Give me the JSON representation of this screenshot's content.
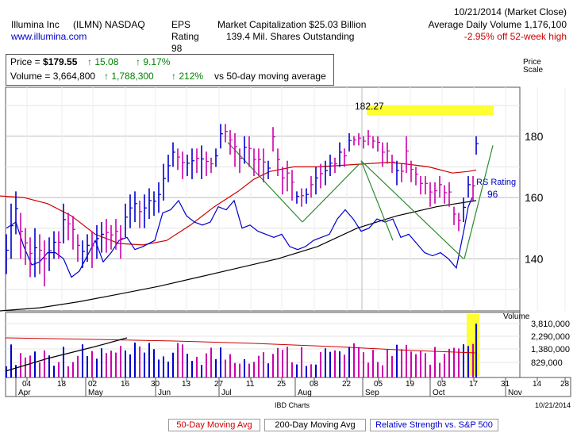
{
  "header": {
    "company": "Illumina Inc",
    "ticker": "(ILMN) NASDAQ",
    "website": "www.illumina.com",
    "eps_label": "EPS",
    "eps_rating_label": "Rating",
    "eps_rating_value": "98",
    "market_cap": "Market Capitalization $25.03 Billion",
    "shares_outstanding": "139.4 Mil. Shares Outstanding",
    "date": "10/21/2014 (Market Close)",
    "avg_volume": "Average Daily Volume 1,176,100",
    "off_high": "-2.95% off 52-week high"
  },
  "stats": {
    "price_label": "Price =",
    "price_value": "$179.55",
    "price_change": "15.08",
    "price_change_pct": "9.17%",
    "volume_label": "Volume =",
    "volume_value": "3,664,800",
    "volume_change": "1,788,300",
    "volume_change_pct": "212%",
    "volume_note": "vs 50-day moving average"
  },
  "chart_data": {
    "type": "bar",
    "price_axis": {
      "title": "Price Scale",
      "ticks": [
        180,
        160,
        140
      ],
      "ylim": [
        123,
        196
      ]
    },
    "volume_axis": {
      "title": "Volume",
      "ticks": [
        "3,810,000",
        "2,290,000",
        "1,380,000",
        "829,000"
      ]
    },
    "annotation_high": "182.27",
    "rs_rating_label": "RS Rating",
    "rs_rating_value": "96",
    "x_ticks": [
      "04",
      "18",
      "02",
      "16",
      "30",
      "13",
      "27",
      "11",
      "25",
      "08",
      "22",
      "05",
      "19",
      "03",
      "17",
      "31",
      "14",
      "28"
    ],
    "months": [
      "Apr",
      "May",
      "Jun",
      "Jul",
      "Aug",
      "Sep",
      "Oct",
      "Nov"
    ],
    "footer_source": "IBD Charts",
    "footer_date": "10/21/2014",
    "series": [
      {
        "name": "50-Day Moving Avg",
        "color": "#cc0000",
        "values": [
          [
            0,
            160.5
          ],
          [
            30,
            160
          ],
          [
            60,
            158
          ],
          [
            90,
            154
          ],
          [
            120,
            148
          ],
          [
            150,
            145
          ],
          [
            180,
            144.5
          ],
          [
            210,
            146
          ],
          [
            240,
            151
          ],
          [
            270,
            157
          ],
          [
            300,
            162
          ],
          [
            320,
            166
          ],
          [
            340,
            168.5
          ],
          [
            370,
            170
          ],
          [
            400,
            170
          ],
          [
            430,
            170.5
          ],
          [
            460,
            171
          ],
          [
            490,
            171.5
          ],
          [
            510,
            171
          ],
          [
            540,
            170
          ],
          [
            570,
            168
          ],
          [
            590,
            168.5
          ],
          [
            600,
            169
          ]
        ]
      },
      {
        "name": "200-Day Moving Avg",
        "color": "#000000",
        "values": [
          [
            0,
            123
          ],
          [
            50,
            124
          ],
          [
            100,
            126
          ],
          [
            150,
            128.5
          ],
          [
            200,
            131
          ],
          [
            250,
            134
          ],
          [
            300,
            137
          ],
          [
            350,
            140
          ],
          [
            400,
            144
          ],
          [
            450,
            150
          ],
          [
            500,
            154
          ],
          [
            550,
            157
          ],
          [
            600,
            159
          ]
        ]
      },
      {
        "name": "Relative Strength vs. S&P 500",
        "color": "#0000cc",
        "values": [
          [
            8,
            150
          ],
          [
            20,
            152
          ],
          [
            30,
            144
          ],
          [
            40,
            138
          ],
          [
            50,
            139
          ],
          [
            60,
            142
          ],
          [
            70,
            142
          ],
          [
            80,
            140
          ],
          [
            90,
            134
          ],
          [
            100,
            136
          ],
          [
            110,
            141
          ],
          [
            120,
            146
          ],
          [
            130,
            139
          ],
          [
            140,
            142
          ],
          [
            150,
            146
          ],
          [
            160,
            147
          ],
          [
            170,
            143
          ],
          [
            180,
            144
          ],
          [
            195,
            146
          ],
          [
            205,
            155
          ],
          [
            215,
            156
          ],
          [
            225,
            159
          ],
          [
            235,
            154
          ],
          [
            245,
            152
          ],
          [
            255,
            151
          ],
          [
            265,
            152
          ],
          [
            275,
            157
          ],
          [
            285,
            156
          ],
          [
            295,
            159
          ],
          [
            305,
            150
          ],
          [
            315,
            151
          ],
          [
            325,
            149
          ],
          [
            335,
            148
          ],
          [
            345,
            147
          ],
          [
            355,
            148
          ],
          [
            365,
            144
          ],
          [
            375,
            143
          ],
          [
            385,
            144
          ],
          [
            395,
            146
          ],
          [
            405,
            147
          ],
          [
            415,
            148
          ],
          [
            425,
            153
          ],
          [
            435,
            156
          ],
          [
            445,
            153
          ],
          [
            455,
            149
          ],
          [
            465,
            150
          ],
          [
            475,
            153
          ],
          [
            485,
            152
          ],
          [
            495,
            153
          ],
          [
            505,
            147
          ],
          [
            515,
            148
          ],
          [
            525,
            145
          ],
          [
            535,
            142
          ],
          [
            545,
            141
          ],
          [
            555,
            142
          ],
          [
            565,
            140
          ],
          [
            575,
            137
          ],
          [
            585,
            150
          ],
          [
            590,
            157
          ],
          [
            595,
            160
          ]
        ]
      }
    ],
    "price_bars": [
      [
        8,
        148,
        135,
        "b"
      ],
      [
        14,
        158,
        140,
        "b"
      ],
      [
        20,
        162,
        148,
        "b"
      ],
      [
        26,
        155,
        140,
        "m"
      ],
      [
        32,
        150,
        138,
        "m"
      ],
      [
        38,
        147,
        134,
        "m"
      ],
      [
        44,
        150,
        134,
        "b"
      ],
      [
        50,
        148,
        135,
        "m"
      ],
      [
        56,
        146,
        131,
        "m"
      ],
      [
        62,
        147,
        136,
        "b"
      ],
      [
        68,
        149,
        140,
        "b"
      ],
      [
        74,
        149,
        140,
        "m"
      ],
      [
        80,
        158,
        145,
        "b"
      ],
      [
        86,
        155,
        146,
        "m"
      ],
      [
        92,
        154,
        143,
        "m"
      ],
      [
        98,
        148,
        139,
        "m"
      ],
      [
        104,
        146,
        137,
        "b"
      ],
      [
        110,
        148,
        139,
        "b"
      ],
      [
        116,
        149,
        137,
        "m"
      ],
      [
        122,
        151,
        140,
        "b"
      ],
      [
        128,
        152,
        142,
        "b"
      ],
      [
        134,
        153,
        142,
        "m"
      ],
      [
        140,
        151,
        143,
        "m"
      ],
      [
        146,
        153,
        143,
        "m"
      ],
      [
        152,
        151,
        140,
        "m"
      ],
      [
        158,
        158,
        147,
        "b"
      ],
      [
        164,
        161,
        150,
        "b"
      ],
      [
        170,
        162,
        152,
        "b"
      ],
      [
        176,
        159,
        150,
        "m"
      ],
      [
        182,
        161,
        150,
        "b"
      ],
      [
        188,
        163,
        153,
        "b"
      ],
      [
        194,
        162,
        154,
        "b"
      ],
      [
        200,
        165,
        155,
        "b"
      ],
      [
        206,
        171,
        159,
        "b"
      ],
      [
        212,
        174,
        165,
        "b"
      ],
      [
        218,
        178,
        170,
        "b"
      ],
      [
        224,
        176,
        169,
        "m"
      ],
      [
        230,
        175,
        166,
        "m"
      ],
      [
        236,
        174,
        167,
        "b"
      ],
      [
        242,
        176,
        166,
        "b"
      ],
      [
        248,
        176,
        168,
        "m"
      ],
      [
        254,
        177,
        166,
        "b"
      ],
      [
        260,
        175,
        167,
        "m"
      ],
      [
        266,
        173,
        168,
        "m"
      ],
      [
        272,
        176,
        170,
        "b"
      ],
      [
        278,
        184,
        176,
        "b"
      ],
      [
        284,
        184,
        178,
        "m"
      ],
      [
        290,
        182,
        174,
        "m"
      ],
      [
        296,
        181,
        170,
        "m"
      ],
      [
        302,
        176,
        168,
        "m"
      ],
      [
        308,
        180,
        171,
        "b"
      ],
      [
        314,
        180,
        170,
        "m"
      ],
      [
        320,
        176,
        167,
        "m"
      ],
      [
        326,
        176,
        167,
        "m"
      ],
      [
        332,
        176,
        165,
        "m"
      ],
      [
        338,
        172,
        166,
        "b"
      ],
      [
        344,
        183,
        175,
        "m"
      ],
      [
        350,
        176,
        167,
        "m"
      ],
      [
        356,
        170,
        161,
        "m"
      ],
      [
        362,
        172,
        162,
        "m"
      ],
      [
        368,
        169,
        159,
        "m"
      ],
      [
        374,
        162,
        158,
        "b"
      ],
      [
        380,
        163,
        157,
        "m"
      ],
      [
        386,
        163,
        158,
        "b"
      ],
      [
        392,
        167,
        160,
        "m"
      ],
      [
        398,
        170,
        161,
        "b"
      ],
      [
        404,
        171,
        163,
        "m"
      ],
      [
        410,
        172,
        164,
        "b"
      ],
      [
        416,
        174,
        167,
        "b"
      ],
      [
        422,
        173,
        168,
        "m"
      ],
      [
        428,
        178,
        170,
        "b"
      ],
      [
        434,
        176,
        170,
        "m"
      ],
      [
        440,
        181,
        175,
        "b"
      ],
      [
        446,
        180,
        177,
        "m"
      ],
      [
        452,
        181,
        177,
        "m"
      ],
      [
        458,
        180,
        176,
        "m"
      ],
      [
        464,
        182,
        177,
        "m"
      ],
      [
        470,
        180,
        176,
        "m"
      ],
      [
        476,
        180,
        175,
        "m"
      ],
      [
        482,
        178,
        170,
        "m"
      ],
      [
        488,
        178,
        171,
        "m"
      ],
      [
        494,
        174,
        168,
        "m"
      ],
      [
        500,
        172,
        164,
        "b"
      ],
      [
        506,
        171,
        165,
        "m"
      ],
      [
        512,
        180,
        168,
        "m"
      ],
      [
        518,
        172,
        165,
        "m"
      ],
      [
        524,
        170,
        164,
        "m"
      ],
      [
        530,
        167,
        161,
        "m"
      ],
      [
        536,
        167,
        161,
        "m"
      ],
      [
        542,
        165,
        157,
        "m"
      ],
      [
        548,
        165,
        158,
        "m"
      ],
      [
        554,
        167,
        160,
        "m"
      ],
      [
        560,
        164,
        158,
        "m"
      ],
      [
        566,
        165,
        157,
        "m"
      ],
      [
        572,
        157,
        151,
        "m"
      ],
      [
        578,
        155,
        149,
        "m"
      ],
      [
        584,
        160,
        152,
        "b"
      ],
      [
        590,
        167,
        160,
        "b"
      ],
      [
        596,
        167,
        159,
        "m"
      ],
      [
        600,
        180,
        174,
        "b"
      ]
    ]
  },
  "legend": {
    "ma50": "50-Day Moving Avg",
    "ma200": "200-Day Moving Avg",
    "rs": "Relative Strength vs. S&P 500"
  }
}
